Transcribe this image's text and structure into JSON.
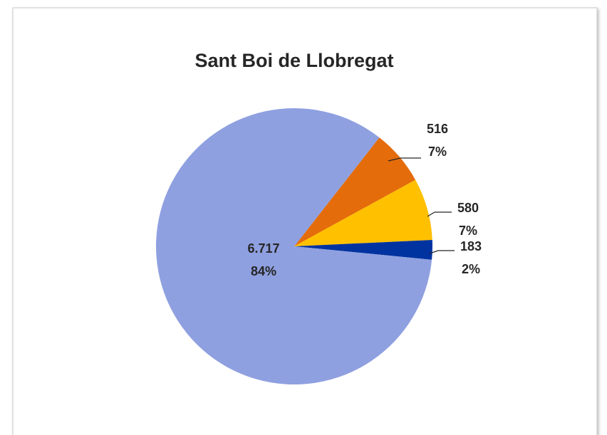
{
  "chart_data": {
    "type": "pie",
    "title": "Sant Boi de Llobregat",
    "values": [
      516,
      580,
      183,
      6717
    ],
    "value_labels": [
      "516",
      "580",
      "183",
      "6.717"
    ],
    "percent_labels": [
      "7%",
      "7%",
      "2%",
      "84%"
    ],
    "colors": [
      "#E46C0A",
      "#FFC000",
      "#0033A0",
      "#8FA0E0"
    ]
  }
}
